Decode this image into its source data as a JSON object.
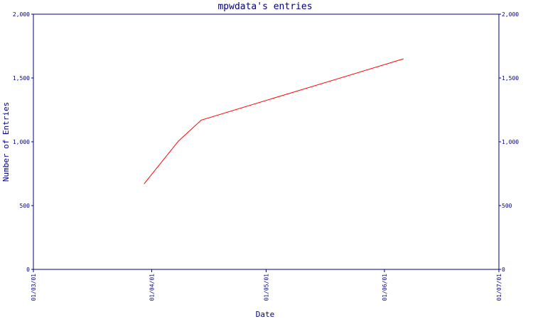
{
  "chart_data": {
    "type": "line",
    "title": "mpwdata's entries",
    "xlabel": "Date",
    "ylabel": "Number of Entries",
    "x_tick_labels": [
      "01/03/01",
      "01/04/01",
      "01/05/01",
      "01/06/01",
      "01/07/01"
    ],
    "y_tick_labels": [
      "0",
      "500",
      "1,000",
      "1,500",
      "2,000"
    ],
    "y_ticks": [
      0,
      500,
      1000,
      1500,
      2000
    ],
    "ylim": [
      0,
      2000
    ],
    "xlim": [
      "2001-03-01",
      "2001-07-01"
    ],
    "grid": false,
    "series": [
      {
        "color": "#ff0000",
        "x": [
          "2001-03-30",
          "2001-04-08",
          "2001-04-14",
          "2001-06-06"
        ],
        "y": [
          670,
          1005,
          1170,
          1650
        ]
      }
    ]
  },
  "colors": {
    "axis": "#000080",
    "line": "#ff0000",
    "background": "#ffffff"
  }
}
